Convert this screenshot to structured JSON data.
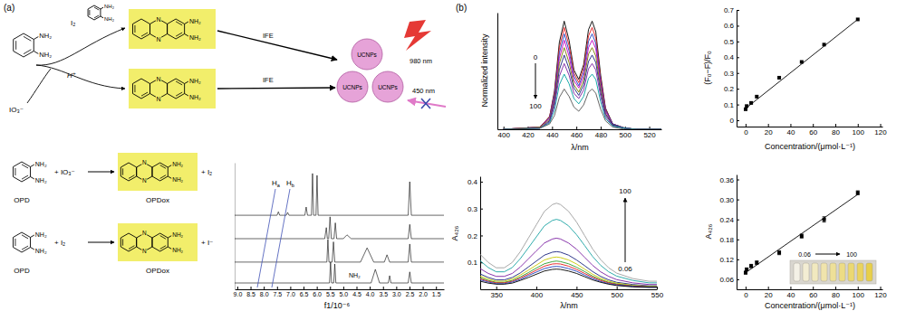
{
  "panel_labels": [
    "(a)",
    "(b)"
  ],
  "scheme": {
    "opd": [
      "NH₂",
      "NH₂"
    ],
    "iodate": "IO₃⁻",
    "acid": "H⁺",
    "iodine": "I₂",
    "opd_reagent": [
      "NH₂",
      "NH₂"
    ],
    "products": [
      [
        "N",
        "N",
        "NH₂",
        "NH₂"
      ],
      [
        "N",
        "N",
        "NH₂",
        "NH₂"
      ]
    ],
    "ife": [
      "IFE",
      "IFE"
    ],
    "ucnps": [
      "UCNPs",
      "UCNPs",
      "UCNPs"
    ],
    "wavelengths": [
      "980 nm",
      "450 nm"
    ]
  },
  "reactions": [
    {
      "reactant": "OPD",
      "reactant_groups": [
        "NH₂",
        "NH₂"
      ],
      "reagent": "+ IO₃⁻",
      "product": "OPDox",
      "product_groups": [
        "N",
        "N",
        "NH₂",
        "NH₂"
      ],
      "byproduct": "+ I₂"
    },
    {
      "reactant": "OPD",
      "reactant_groups": [
        "NH₂",
        "NH₂"
      ],
      "reagent": "+ I₂",
      "product": "OPDox",
      "product_groups": [
        "N",
        "N",
        "NH₂",
        "NH₂"
      ],
      "byproduct": "+ I⁻"
    }
  ],
  "chart_data": [
    {
      "type": "line",
      "x_label": "f1/10⁻⁶",
      "xlim": [
        9.1,
        1.2
      ],
      "ylim": [
        0,
        4
      ],
      "xticks": [
        {
          "value": 9,
          "label": "9.0"
        },
        8.5,
        {
          "value": 8,
          "label": "8.0"
        },
        7.5,
        {
          "value": 7,
          "label": "7.0"
        },
        6.5,
        {
          "value": 6,
          "label": "6.0"
        },
        5.5,
        {
          "value": 5,
          "label": "5.0"
        },
        4.5,
        {
          "value": 4,
          "label": "4.0"
        },
        3.5,
        {
          "value": 3,
          "label": "3.0"
        },
        2.5,
        {
          "value": 2,
          "label": "2.0"
        },
        1.5
      ],
      "tick_labels": "x",
      "annotations": [
        "Ha",
        "Hb",
        "NH₂"
      ],
      "series": [
        {
          "color": "#000000",
          "x": [
            9.1,
            7.5,
            7.45,
            7.4,
            7.15,
            7.1,
            7.05,
            6.45,
            6.4,
            6.35,
            6.2,
            6.16,
            6.12,
            6.03,
            5.99,
            5.95,
            2.55,
            2.49,
            2.43,
            1.2
          ],
          "values": [
            2.34,
            2.34,
            2.45,
            2.34,
            2.34,
            2.43,
            2.34,
            2.34,
            2.6,
            2.34,
            2.34,
            3.66,
            2.34,
            2.34,
            3.6,
            2.34,
            2.34,
            3.4,
            2.34,
            2.34
          ]
        },
        {
          "color": "#000000",
          "x": [
            9.1,
            5.7,
            5.64,
            5.6,
            5.55,
            5.5,
            5.45,
            5.35,
            5.3,
            5.25,
            5.0,
            4.86,
            4.7,
            2.55,
            2.49,
            2.43,
            1.2
          ],
          "values": [
            1.6,
            1.6,
            1.95,
            1.6,
            1.6,
            2.29,
            1.6,
            1.6,
            2.1,
            1.6,
            1.6,
            1.72,
            1.6,
            1.6,
            2.05,
            1.6,
            1.6
          ]
        },
        {
          "color": "#000000",
          "x": [
            9.1,
            5.62,
            5.58,
            5.54,
            5.42,
            5.37,
            5.32,
            4.35,
            4.1,
            3.85,
            3.45,
            3.35,
            3.25,
            2.55,
            2.49,
            2.43,
            1.2
          ],
          "values": [
            0.86,
            0.86,
            1.57,
            0.86,
            0.86,
            1.5,
            0.86,
            0.86,
            1.31,
            0.86,
            0.86,
            1.09,
            0.86,
            0.86,
            1.43,
            0.86,
            0.86
          ]
        },
        {
          "color": "#000000",
          "x": [
            9.1,
            5.52,
            5.48,
            5.44,
            5.36,
            5.32,
            5.28,
            3.95,
            3.79,
            3.63,
            3.3,
            3.25,
            3.2,
            2.55,
            2.49,
            2.43,
            1.2
          ],
          "values": [
            0.2,
            0.2,
            0.86,
            0.2,
            0.2,
            0.8,
            0.2,
            0.2,
            0.63,
            0.2,
            0.2,
            0.43,
            0.2,
            0.2,
            0.55,
            0.2,
            0.2
          ]
        }
      ]
    },
    {
      "type": "line",
      "x_label": "λ/nm",
      "y_label": "Normalized intensity",
      "xlim": [
        395,
        530
      ],
      "ylim": [
        0,
        1.1
      ],
      "xticks": [
        400,
        420,
        440,
        460,
        480,
        500,
        520
      ],
      "tick_labels": "x",
      "annotations": [
        "0",
        "100"
      ],
      "x": [
        400,
        430,
        438,
        442,
        446,
        450,
        454,
        458,
        462,
        466,
        470,
        473,
        476,
        480,
        484,
        490,
        500,
        510,
        520,
        530
      ],
      "series": [
        {
          "color": "#000000",
          "values": [
            0,
            0.02,
            0.12,
            0.36,
            0.82,
            1.02,
            0.84,
            0.56,
            0.47,
            0.61,
            0.94,
            1.02,
            0.92,
            0.51,
            0.2,
            0.05,
            0.01,
            0,
            0,
            0
          ]
        },
        {
          "color": "#e41a1c",
          "values": [
            0,
            0.02,
            0.12,
            0.34,
            0.77,
            0.96,
            0.79,
            0.53,
            0.44,
            0.58,
            0.88,
            0.96,
            0.86,
            0.48,
            0.19,
            0.05,
            0.01,
            0,
            0,
            0
          ]
        },
        {
          "color": "#1f3fbf",
          "values": [
            0,
            0.02,
            0.11,
            0.32,
            0.72,
            0.9,
            0.74,
            0.5,
            0.41,
            0.54,
            0.83,
            0.9,
            0.81,
            0.45,
            0.18,
            0.05,
            0.01,
            0,
            0,
            0
          ]
        },
        {
          "color": "#c000c0",
          "values": [
            0,
            0.02,
            0.1,
            0.29,
            0.67,
            0.84,
            0.69,
            0.46,
            0.39,
            0.5,
            0.77,
            0.84,
            0.76,
            0.42,
            0.17,
            0.04,
            0.01,
            0,
            0,
            0
          ]
        },
        {
          "color": "#7a7a00",
          "values": [
            0,
            0.02,
            0.09,
            0.27,
            0.62,
            0.77,
            0.63,
            0.42,
            0.35,
            0.46,
            0.71,
            0.77,
            0.69,
            0.39,
            0.15,
            0.04,
            0.01,
            0,
            0,
            0
          ]
        },
        {
          "color": "#1a237e",
          "values": [
            0,
            0.01,
            0.08,
            0.25,
            0.56,
            0.7,
            0.57,
            0.39,
            0.32,
            0.42,
            0.64,
            0.7,
            0.63,
            0.35,
            0.14,
            0.04,
            0.01,
            0,
            0,
            0
          ]
        },
        {
          "color": "#7b1fa2",
          "values": [
            0,
            0.01,
            0.07,
            0.22,
            0.5,
            0.62,
            0.51,
            0.34,
            0.29,
            0.37,
            0.57,
            0.62,
            0.56,
            0.31,
            0.12,
            0.03,
            0.01,
            0,
            0,
            0
          ]
        },
        {
          "color": "#00a0a0",
          "values": [
            0,
            0.01,
            0.06,
            0.18,
            0.42,
            0.52,
            0.43,
            0.29,
            0.24,
            0.31,
            0.48,
            0.52,
            0.47,
            0.26,
            0.1,
            0.03,
            0.01,
            0,
            0,
            0
          ]
        },
        {
          "color": "#555555",
          "values": [
            0,
            0.01,
            0.05,
            0.13,
            0.3,
            0.38,
            0.31,
            0.21,
            0.17,
            0.23,
            0.35,
            0.38,
            0.34,
            0.19,
            0.08,
            0.02,
            0,
            0,
            0,
            0
          ]
        }
      ]
    },
    {
      "type": "scatter",
      "x_label": "Concentration/(μmol·L⁻¹)",
      "y_label": "(F₀−F)/F₀",
      "xlim": [
        -8,
        122
      ],
      "ylim": [
        -0.04,
        0.7
      ],
      "xticks": [
        0,
        20,
        40,
        60,
        80,
        100,
        120
      ],
      "yticks": [
        0,
        0.1,
        0.2,
        0.3,
        0.4,
        0.5,
        0.6,
        0.7
      ],
      "series": [
        {
          "color": "#000000",
          "marker": "square",
          "x": [
            0.06,
            1,
            5,
            10,
            30,
            50,
            70,
            100
          ],
          "values": [
            0.07,
            0.09,
            0.11,
            0.15,
            0.27,
            0.37,
            0.48,
            0.64
          ]
        },
        {
          "type": "line",
          "color": "#000000",
          "x": [
            0.06,
            100
          ],
          "values": [
            0.075,
            0.64
          ]
        }
      ]
    },
    {
      "type": "line",
      "x_label": "λ/nm",
      "y_label": "A₄₂₆",
      "xlim": [
        330,
        550
      ],
      "ylim": [
        0,
        0.42
      ],
      "xticks": [
        350,
        400,
        450,
        500,
        550
      ],
      "yticks": [
        0.1,
        0.2,
        0.3,
        0.4
      ],
      "annotations": [
        "100",
        "0.06"
      ],
      "x": [
        330,
        340,
        350,
        360,
        370,
        380,
        390,
        400,
        410,
        420,
        425,
        430,
        440,
        450,
        460,
        470,
        480,
        490,
        500,
        520,
        540,
        550
      ],
      "series": [
        {
          "color": "#9e9e9e",
          "values": [
            0.13,
            0.1,
            0.08,
            0.08,
            0.1,
            0.14,
            0.19,
            0.24,
            0.29,
            0.315,
            0.32,
            0.315,
            0.29,
            0.25,
            0.2,
            0.15,
            0.11,
            0.08,
            0.06,
            0.04,
            0.03,
            0.03
          ]
        },
        {
          "color": "#1aa3a3",
          "values": [
            0.106,
            0.081,
            0.065,
            0.065,
            0.081,
            0.114,
            0.154,
            0.195,
            0.236,
            0.256,
            0.26,
            0.256,
            0.236,
            0.203,
            0.163,
            0.122,
            0.089,
            0.065,
            0.049,
            0.033,
            0.024,
            0.024
          ]
        },
        {
          "color": "#7b1fa2",
          "values": [
            0.077,
            0.059,
            0.048,
            0.048,
            0.059,
            0.083,
            0.113,
            0.143,
            0.172,
            0.187,
            0.19,
            0.187,
            0.172,
            0.149,
            0.119,
            0.089,
            0.065,
            0.048,
            0.036,
            0.024,
            0.018,
            0.018
          ]
        },
        {
          "color": "#1a237e",
          "values": [
            0.057,
            0.044,
            0.035,
            0.035,
            0.044,
            0.061,
            0.083,
            0.105,
            0.127,
            0.138,
            0.14,
            0.138,
            0.127,
            0.109,
            0.088,
            0.066,
            0.048,
            0.035,
            0.026,
            0.018,
            0.013,
            0.013
          ]
        },
        {
          "color": "#c8c800",
          "values": [
            0.049,
            0.038,
            0.03,
            0.03,
            0.038,
            0.053,
            0.071,
            0.09,
            0.109,
            0.118,
            0.12,
            0.118,
            0.109,
            0.094,
            0.075,
            0.056,
            0.041,
            0.03,
            0.023,
            0.015,
            0.011,
            0.011
          ]
        },
        {
          "color": "#2e9e2e",
          "values": [
            0.043,
            0.033,
            0.026,
            0.026,
            0.033,
            0.046,
            0.062,
            0.079,
            0.095,
            0.103,
            0.105,
            0.103,
            0.095,
            0.082,
            0.066,
            0.049,
            0.036,
            0.026,
            0.02,
            0.013,
            0.01,
            0.01
          ]
        },
        {
          "color": "#e41a1c",
          "values": [
            0.039,
            0.03,
            0.024,
            0.024,
            0.03,
            0.042,
            0.056,
            0.071,
            0.086,
            0.094,
            0.095,
            0.094,
            0.086,
            0.074,
            0.059,
            0.045,
            0.033,
            0.024,
            0.018,
            0.012,
            0.009,
            0.009
          ]
        },
        {
          "color": "#1f3fbf",
          "values": [
            0.035,
            0.027,
            0.021,
            0.021,
            0.027,
            0.037,
            0.051,
            0.064,
            0.077,
            0.084,
            0.085,
            0.084,
            0.077,
            0.067,
            0.053,
            0.04,
            0.029,
            0.021,
            0.016,
            0.011,
            0.008,
            0.008
          ]
        },
        {
          "color": "#000000",
          "values": [
            0.03,
            0.023,
            0.019,
            0.019,
            0.023,
            0.033,
            0.044,
            0.056,
            0.068,
            0.074,
            0.075,
            0.074,
            0.068,
            0.059,
            0.047,
            0.035,
            0.026,
            0.019,
            0.014,
            0.009,
            0.007,
            0.007
          ]
        }
      ]
    },
    {
      "type": "scatter",
      "x_label": "Concentration/(μmol·L⁻¹)",
      "y_label": "A₄₂₆",
      "xlim": [
        -8,
        122
      ],
      "ylim": [
        0.03,
        0.375
      ],
      "xticks": [
        0,
        20,
        40,
        60,
        80,
        100,
        120
      ],
      "yticks": [
        0.06,
        0.12,
        0.18,
        0.24,
        {
          "value": 0.3,
          "label": "0.30"
        },
        0.36
      ],
      "annotations": [
        "0.06",
        "100"
      ],
      "series": [
        {
          "color": "#000000",
          "marker": "square",
          "x": [
            0.06,
            1,
            5,
            10,
            30,
            50,
            70,
            100
          ],
          "values": [
            0.08,
            0.09,
            0.1,
            0.11,
            0.14,
            0.19,
            0.24,
            0.32
          ],
          "errors": [
            0.004,
            0.004,
            0.005,
            0.005,
            0.006,
            0.006,
            0.008,
            0.006
          ]
        },
        {
          "type": "line",
          "color": "#000000",
          "x": [
            0.06,
            100
          ],
          "values": [
            0.08,
            0.315
          ]
        }
      ]
    }
  ]
}
